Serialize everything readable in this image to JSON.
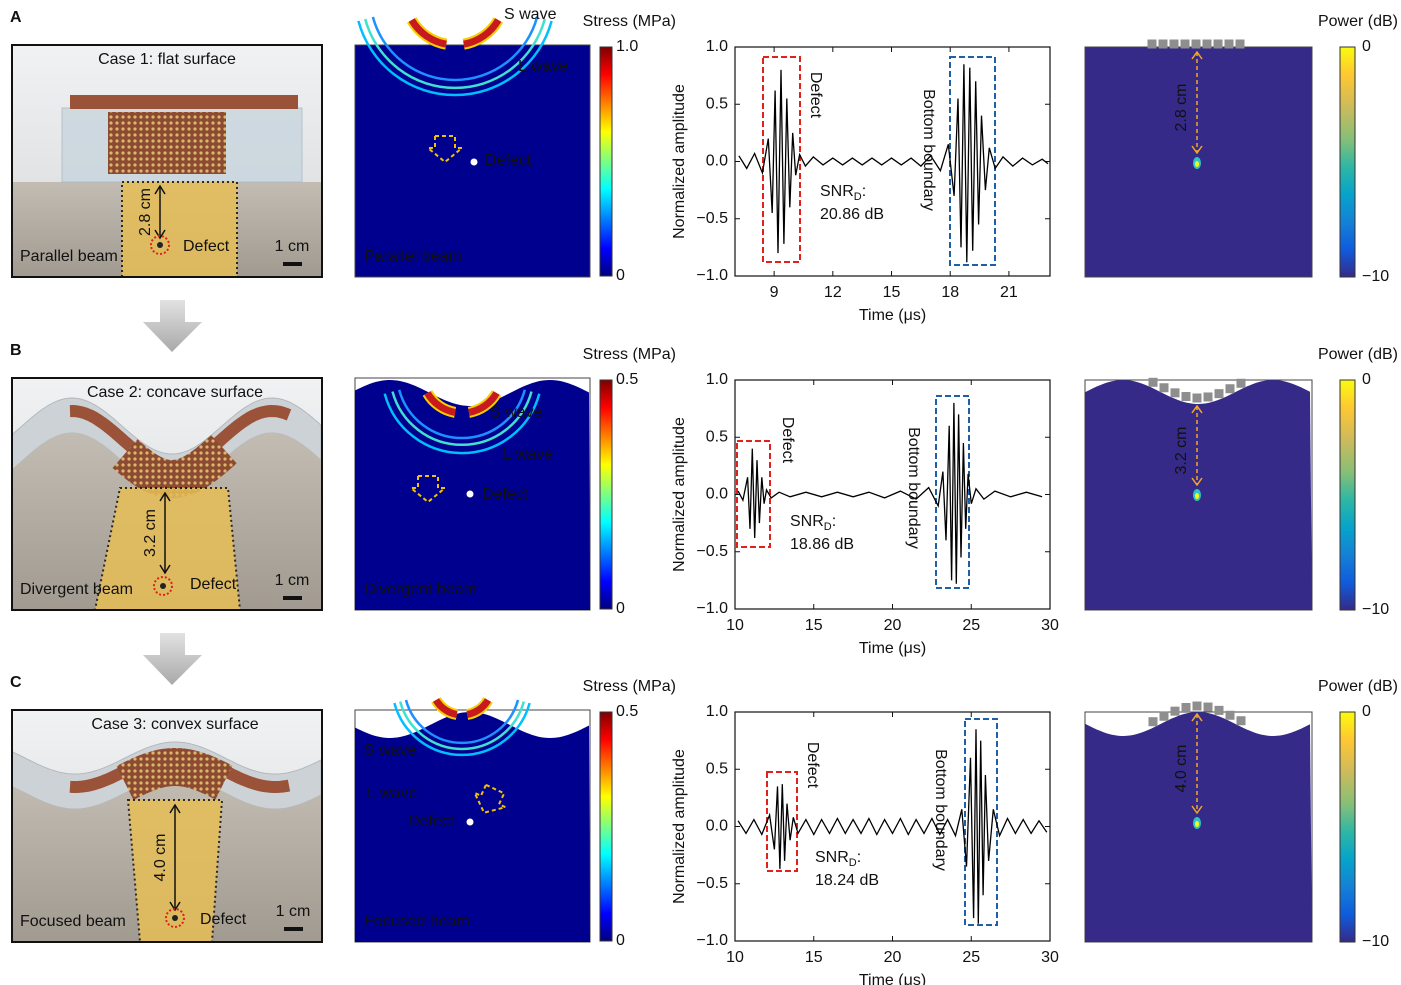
{
  "panels": [
    {
      "letter": "A",
      "photo": {
        "caption": "Case 1: flat surface",
        "distance": "2.8 cm",
        "defect": "Defect",
        "scale": "1 cm",
        "beam": "Parallel beam"
      },
      "simulation": {
        "s_wave": "S wave",
        "l_wave": "L wave",
        "defect": "Defect",
        "beam": "Parallel beam"
      },
      "stress_colorbar": {
        "title": "Stress (MPa)",
        "ticks": [
          "1.0",
          "0"
        ]
      },
      "power_map": {
        "distance": "2.8 cm"
      },
      "power_colorbar": {
        "title": "Power (dB)",
        "ticks": [
          "0",
          "−10"
        ]
      }
    },
    {
      "letter": "B",
      "photo": {
        "caption": "Case 2: concave surface",
        "distance": "3.2 cm",
        "defect": "Defect",
        "scale": "1 cm",
        "beam": "Divergent beam"
      },
      "simulation": {
        "s_wave": "S wave",
        "l_wave": "L wave",
        "defect": "Defect",
        "beam": "Divergent beam"
      },
      "stress_colorbar": {
        "title": "Stress (MPa)",
        "ticks": [
          "0.5",
          "0"
        ]
      },
      "power_map": {
        "distance": "3.2 cm"
      },
      "power_colorbar": {
        "title": "Power (dB)",
        "ticks": [
          "0",
          "−10"
        ]
      }
    },
    {
      "letter": "C",
      "photo": {
        "caption": "Case 3: convex surface",
        "distance": "4.0 cm",
        "defect": "Defect",
        "scale": "1 cm",
        "beam": "Focused beam"
      },
      "simulation": {
        "s_wave": "S wave",
        "l_wave": "L wave",
        "defect": "Defect",
        "beam": "Focused beam"
      },
      "stress_colorbar": {
        "title": "Stress (MPa)",
        "ticks": [
          "0.5",
          "0"
        ]
      },
      "power_map": {
        "distance": "4.0 cm"
      },
      "power_colorbar": {
        "title": "Power (dB)",
        "ticks": [
          "0",
          "−10"
        ]
      }
    }
  ],
  "chart_data": [
    {
      "type": "line",
      "x_label": "Time (μs)",
      "y_label": "Normalized amplitude",
      "xlim": [
        7,
        23.1
      ],
      "xticks": [
        9,
        12,
        15,
        18,
        21
      ],
      "ylim": [
        -1,
        1
      ],
      "yticks": [
        {
          "value": -1,
          "label": "−1.0"
        },
        {
          "value": -0.5,
          "label": "−0.5"
        },
        {
          "value": 0,
          "label": "0.0"
        },
        {
          "value": 0.5,
          "label": "0.5"
        },
        {
          "value": 1,
          "label": "1.0"
        }
      ],
      "x": [
        7.2,
        7.6,
        8.0,
        8.4,
        8.7,
        8.9,
        9.05,
        9.2,
        9.35,
        9.5,
        9.65,
        9.8,
        9.95,
        10.1,
        10.3,
        10.6,
        11,
        11.5,
        12,
        12.5,
        13,
        13.5,
        14,
        14.5,
        15,
        15.5,
        16,
        16.5,
        17,
        17.5,
        17.9,
        18.2,
        18.4,
        18.55,
        18.7,
        18.85,
        19.0,
        19.15,
        19.3,
        19.45,
        19.6,
        19.8,
        20.0,
        20.3,
        20.7,
        21.2,
        21.7,
        22.2,
        22.7,
        23.0
      ],
      "series": [
        {
          "color": "#000000",
          "values": [
            0.05,
            -0.06,
            0.07,
            -0.1,
            0.2,
            -0.45,
            0.62,
            -0.8,
            0.8,
            -0.72,
            0.55,
            -0.4,
            0.25,
            -0.12,
            0.06,
            -0.04,
            0.04,
            -0.03,
            0.03,
            -0.03,
            0.03,
            -0.03,
            0.03,
            -0.03,
            0.03,
            -0.03,
            0.03,
            -0.04,
            0.05,
            -0.08,
            0.15,
            -0.3,
            0.55,
            -0.75,
            0.85,
            -0.88,
            0.82,
            -0.78,
            0.7,
            -0.55,
            0.4,
            -0.25,
            0.12,
            -0.06,
            0.04,
            -0.04,
            0.03,
            -0.03,
            0.02,
            -0.02
          ]
        }
      ],
      "annotations": {
        "defect": "Defect",
        "boundary": "Bottom boundary",
        "snr": "SNR",
        "snr_sub": "D",
        "snr_colon": ":",
        "snr_value": "20.86 dB"
      }
    },
    {
      "type": "line",
      "x_label": "Time (μs)",
      "y_label": "Normalized amplitude",
      "xlim": [
        10,
        30
      ],
      "xticks": [
        10,
        15,
        20,
        25,
        30
      ],
      "ylim": [
        -1,
        1
      ],
      "yticks": [
        {
          "value": -1,
          "label": "−1.0"
        },
        {
          "value": -0.5,
          "label": "−0.5"
        },
        {
          "value": 0,
          "label": "0.0"
        },
        {
          "value": 0.5,
          "label": "0.5"
        },
        {
          "value": 1,
          "label": "1.0"
        }
      ],
      "x": [
        10.2,
        10.5,
        10.8,
        10.95,
        11.1,
        11.25,
        11.4,
        11.55,
        11.7,
        11.85,
        12.0,
        12.3,
        12.8,
        13.5,
        14.5,
        15.5,
        16.5,
        17.5,
        18.5,
        19.5,
        20.5,
        21.5,
        22.3,
        22.9,
        23.2,
        23.4,
        23.6,
        23.75,
        23.9,
        24.05,
        24.2,
        24.35,
        24.5,
        24.65,
        24.8,
        25.0,
        25.3,
        25.8,
        26.5,
        27.5,
        28.5,
        29.5
      ],
      "series": [
        {
          "color": "#000000",
          "values": [
            0.03,
            -0.05,
            0.15,
            -0.3,
            0.4,
            -0.38,
            0.3,
            -0.25,
            0.15,
            -0.08,
            0.04,
            -0.03,
            0.02,
            -0.02,
            0.02,
            -0.02,
            0.02,
            -0.02,
            0.02,
            -0.03,
            0.03,
            -0.04,
            0.06,
            -0.1,
            0.2,
            -0.4,
            0.6,
            -0.75,
            0.8,
            -0.78,
            0.7,
            -0.55,
            0.45,
            -0.3,
            0.18,
            -0.08,
            0.05,
            -0.04,
            0.03,
            -0.02,
            0.02,
            -0.02
          ]
        }
      ],
      "annotations": {
        "defect": "Defect",
        "boundary": "Bottom boundary",
        "snr": "SNR",
        "snr_sub": "D",
        "snr_colon": ":",
        "snr_value": "18.86 dB"
      }
    },
    {
      "type": "line",
      "x_label": "Time (μs)",
      "y_label": "Normalized amplitude",
      "xlim": [
        10,
        30
      ],
      "xticks": [
        10,
        15,
        20,
        25,
        30
      ],
      "ylim": [
        -1,
        1
      ],
      "yticks": [
        {
          "value": -1,
          "label": "−1.0"
        },
        {
          "value": -0.5,
          "label": "−0.5"
        },
        {
          "value": 0,
          "label": "0.0"
        },
        {
          "value": 0.5,
          "label": "0.5"
        },
        {
          "value": 1,
          "label": "1.0"
        }
      ],
      "x": [
        10.2,
        10.7,
        11.2,
        11.7,
        12.2,
        12.5,
        12.7,
        12.85,
        13.0,
        13.15,
        13.3,
        13.5,
        13.7,
        14.0,
        14.5,
        15.0,
        15.5,
        16,
        16.5,
        17,
        17.5,
        18,
        18.5,
        19,
        19.5,
        20,
        20.5,
        21,
        21.5,
        22,
        22.5,
        23,
        23.5,
        24,
        24.4,
        24.7,
        24.95,
        25.15,
        25.3,
        25.45,
        25.6,
        25.75,
        25.9,
        26.1,
        26.4,
        26.8,
        27.3,
        27.8,
        28.3,
        28.8,
        29.3,
        29.8
      ],
      "series": [
        {
          "color": "#000000",
          "values": [
            0.05,
            -0.06,
            0.06,
            -0.07,
            0.1,
            -0.2,
            0.35,
            -0.37,
            0.37,
            -0.3,
            0.2,
            -0.12,
            0.08,
            -0.06,
            0.06,
            -0.07,
            0.06,
            -0.06,
            0.07,
            -0.06,
            0.06,
            -0.06,
            0.07,
            -0.07,
            0.06,
            -0.06,
            0.07,
            -0.07,
            0.06,
            -0.06,
            0.07,
            -0.07,
            0.06,
            -0.08,
            0.15,
            -0.35,
            0.6,
            -0.8,
            0.85,
            -0.85,
            0.75,
            -0.6,
            0.45,
            -0.3,
            0.15,
            -0.08,
            0.07,
            -0.06,
            0.06,
            -0.06,
            0.05,
            -0.05
          ]
        }
      ],
      "annotations": {
        "defect": "Defect",
        "boundary": "Bottom boundary",
        "snr": "SNR",
        "snr_sub": "D",
        "snr_colon": ":",
        "snr_value": "18.24 dB"
      }
    }
  ]
}
